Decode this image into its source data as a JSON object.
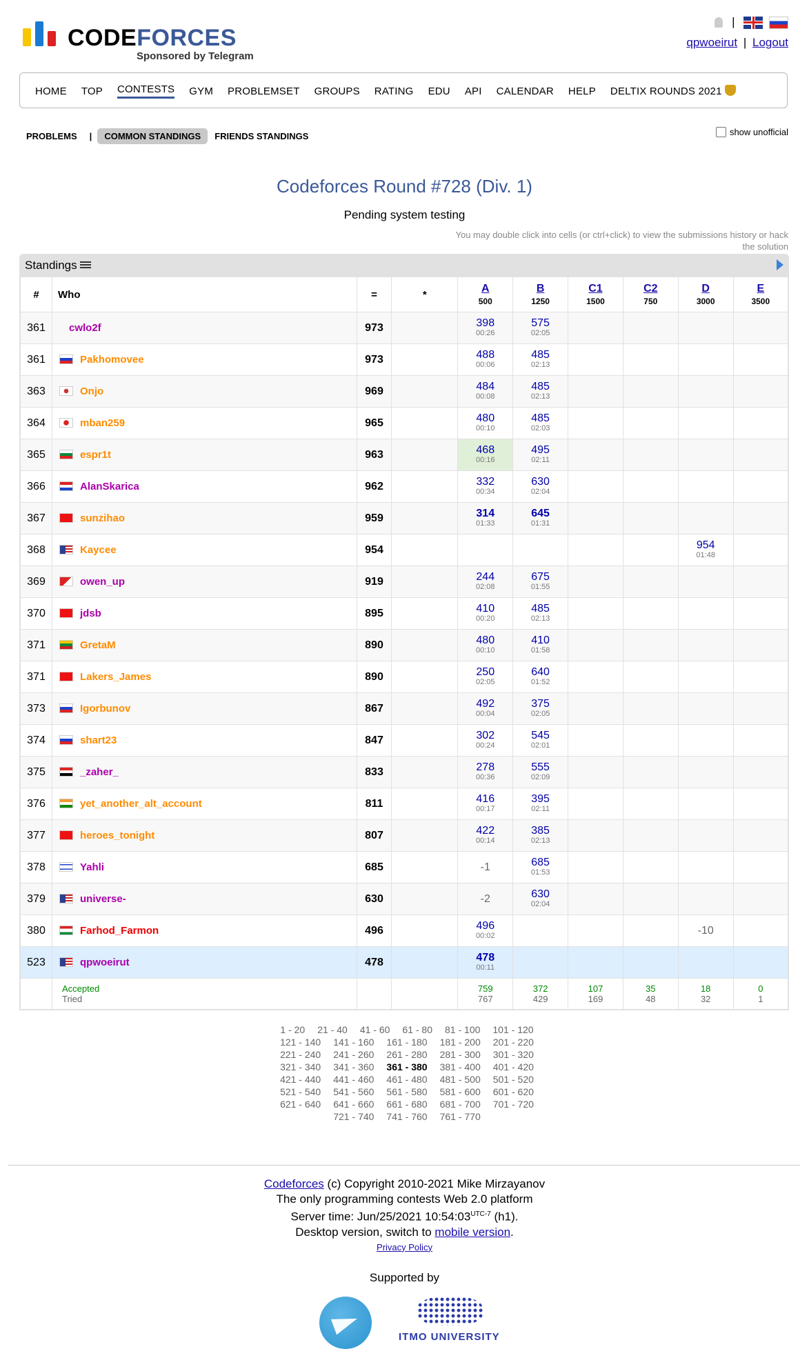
{
  "header": {
    "logo_main": "CODE",
    "logo_accent": "FORCES",
    "sponsor": "Sponsored by Telegram",
    "user": "qpwoeirut",
    "separator": "|",
    "logout": "Logout"
  },
  "menu": [
    "HOME",
    "TOP",
    "CONTESTS",
    "GYM",
    "PROBLEMSET",
    "GROUPS",
    "RATING",
    "EDU",
    "API",
    "CALENDAR",
    "HELP",
    "DELTIX ROUNDS 2021"
  ],
  "subtabs": {
    "problems": "PROBLEMS",
    "sep": "|",
    "common": "COMMON STANDINGS",
    "friends": "FRIENDS STANDINGS",
    "unofficial": "show unofficial"
  },
  "contest": {
    "title": "Codeforces Round #728 (Div. 1)",
    "status": "Pending system testing",
    "hint": "You may double click into cells (or ctrl+click) to view the submissions history or hack the solution"
  },
  "standings": {
    "label": "Standings",
    "headers": {
      "rank": "#",
      "who": "Who",
      "points": "=",
      "penalty": "*"
    },
    "problems": [
      {
        "name": "A",
        "points": "500"
      },
      {
        "name": "B",
        "points": "1250"
      },
      {
        "name": "C1",
        "points": "1500"
      },
      {
        "name": "C2",
        "points": "750"
      },
      {
        "name": "D",
        "points": "3000"
      },
      {
        "name": "E",
        "points": "3500"
      }
    ],
    "rows": [
      {
        "rank": "361",
        "user": "cwlo2f",
        "color": "#a0a",
        "flag": "",
        "points": "973",
        "cells": [
          [
            "398",
            "00:26"
          ],
          [
            "575",
            "02:05"
          ],
          null,
          null,
          null,
          null
        ]
      },
      {
        "rank": "361",
        "user": "Pakhomovee",
        "color": "#ff8c00",
        "flag": "ru",
        "points": "973",
        "cells": [
          [
            "488",
            "00:06"
          ],
          [
            "485",
            "02:13"
          ],
          null,
          null,
          null,
          null
        ]
      },
      {
        "rank": "363",
        "user": "Onjo",
        "color": "#ff8c00",
        "flag": "kr",
        "points": "969",
        "cells": [
          [
            "484",
            "00:08"
          ],
          [
            "485",
            "02:13"
          ],
          null,
          null,
          null,
          null
        ]
      },
      {
        "rank": "364",
        "user": "mban259",
        "color": "#ff8c00",
        "flag": "jp",
        "points": "965",
        "cells": [
          [
            "480",
            "00:10"
          ],
          [
            "485",
            "02:03"
          ],
          null,
          null,
          null,
          null
        ]
      },
      {
        "rank": "365",
        "user": "espr1t",
        "color": "#ff8c00",
        "flag": "bg",
        "points": "963",
        "cells": [
          [
            "468",
            "00:16"
          ],
          [
            "495",
            "02:11"
          ],
          null,
          null,
          null,
          null
        ]
      },
      {
        "rank": "366",
        "user": "AlanSkarica",
        "color": "#a0a",
        "flag": "hr",
        "points": "962",
        "cells": [
          [
            "332",
            "00:34"
          ],
          [
            "630",
            "02:04"
          ],
          null,
          null,
          null,
          null
        ]
      },
      {
        "rank": "367",
        "user": "sunzihao",
        "color": "#ff8c00",
        "flag": "cn",
        "points": "959",
        "cells": [
          [
            "314",
            "01:33"
          ],
          [
            "645",
            "01:31"
          ],
          null,
          null,
          null,
          null
        ]
      },
      {
        "rank": "368",
        "user": "Kaycee",
        "color": "#ff8c00",
        "flag": "us",
        "points": "954",
        "cells": [
          null,
          null,
          null,
          null,
          [
            "954",
            "01:48"
          ],
          null
        ]
      },
      {
        "rank": "369",
        "user": "owen_up",
        "color": "#a0a",
        "flag": "np",
        "points": "919",
        "cells": [
          [
            "244",
            "02:08"
          ],
          [
            "675",
            "01:55"
          ],
          null,
          null,
          null,
          null
        ]
      },
      {
        "rank": "370",
        "user": "jdsb",
        "color": "#a0a",
        "flag": "cn",
        "points": "895",
        "cells": [
          [
            "410",
            "00:20"
          ],
          [
            "485",
            "02:13"
          ],
          null,
          null,
          null,
          null
        ]
      },
      {
        "rank": "371",
        "user": "GretaM",
        "color": "#ff8c00",
        "flag": "lt",
        "points": "890",
        "cells": [
          [
            "480",
            "00:10"
          ],
          [
            "410",
            "01:58"
          ],
          null,
          null,
          null,
          null
        ]
      },
      {
        "rank": "371",
        "user": "Lakers_James",
        "color": "#ff8c00",
        "flag": "cn",
        "points": "890",
        "cells": [
          [
            "250",
            "02:05"
          ],
          [
            "640",
            "01:52"
          ],
          null,
          null,
          null,
          null
        ]
      },
      {
        "rank": "373",
        "user": "Igorbunov",
        "color": "#ff8c00",
        "flag": "ru",
        "points": "867",
        "cells": [
          [
            "492",
            "00:04"
          ],
          [
            "375",
            "02:05"
          ],
          null,
          null,
          null,
          null
        ]
      },
      {
        "rank": "374",
        "user": "shart23",
        "color": "#ff8c00",
        "flag": "ru",
        "points": "847",
        "cells": [
          [
            "302",
            "00:24"
          ],
          [
            "545",
            "02:01"
          ],
          null,
          null,
          null,
          null
        ]
      },
      {
        "rank": "375",
        "user": "_zaher_",
        "color": "#a0a",
        "flag": "eg",
        "points": "833",
        "cells": [
          [
            "278",
            "00:36"
          ],
          [
            "555",
            "02:09"
          ],
          null,
          null,
          null,
          null
        ]
      },
      {
        "rank": "376",
        "user": "yet_another_alt_account",
        "color": "#ff8c00",
        "flag": "in",
        "points": "811",
        "cells": [
          [
            "416",
            "00:17"
          ],
          [
            "395",
            "02:11"
          ],
          null,
          null,
          null,
          null
        ]
      },
      {
        "rank": "377",
        "user": "heroes_tonight",
        "color": "#ff8c00",
        "flag": "cn",
        "points": "807",
        "cells": [
          [
            "422",
            "00:14"
          ],
          [
            "385",
            "02:13"
          ],
          null,
          null,
          null,
          null
        ]
      },
      {
        "rank": "378",
        "user": "Yahli",
        "color": "#a0a",
        "flag": "il",
        "points": "685",
        "cells": [
          [
            "-1",
            ""
          ],
          [
            "685",
            "01:53"
          ],
          null,
          null,
          null,
          null
        ]
      },
      {
        "rank": "379",
        "user": "universe-",
        "color": "#a0a",
        "flag": "us",
        "points": "630",
        "cells": [
          [
            "-2",
            ""
          ],
          [
            "630",
            "02:04"
          ],
          null,
          null,
          null,
          null
        ]
      },
      {
        "rank": "380",
        "user": "Farhod_Farmon",
        "color": "#e00",
        "flag": "tj",
        "points": "496",
        "cells": [
          [
            "496",
            "00:02"
          ],
          null,
          null,
          null,
          [
            "-10",
            ""
          ],
          null
        ]
      },
      {
        "rank": "523",
        "user": "qpwoeirut",
        "color": "#a0a",
        "flag": "us",
        "points": "478",
        "cells": [
          [
            "478",
            "00:11"
          ],
          null,
          null,
          null,
          null,
          null
        ]
      }
    ],
    "accepted_label": "Accepted",
    "tried_label": "Tried",
    "accepted": [
      "759",
      "372",
      "107",
      "35",
      "18",
      "0"
    ],
    "tried": [
      "767",
      "429",
      "169",
      "48",
      "32",
      "1"
    ]
  },
  "pages": [
    [
      "1 - 20",
      "21 - 40",
      "41 - 60",
      "61 - 80",
      "81 - 100",
      "101 - 120"
    ],
    [
      "121 - 140",
      "141 - 160",
      "161 - 180",
      "181 - 200",
      "201 - 220"
    ],
    [
      "221 - 240",
      "241 - 260",
      "261 - 280",
      "281 - 300",
      "301 - 320"
    ],
    [
      "321 - 340",
      "341 - 360",
      "361 - 380",
      "381 - 400",
      "401 - 420"
    ],
    [
      "421 - 440",
      "441 - 460",
      "461 - 480",
      "481 - 500",
      "501 - 520"
    ],
    [
      "521 - 540",
      "541 - 560",
      "561 - 580",
      "581 - 600",
      "601 - 620"
    ],
    [
      "621 - 640",
      "641 - 660",
      "661 - 680",
      "681 - 700",
      "701 - 720"
    ],
    [
      "721 - 740",
      "741 - 760",
      "761 - 770"
    ]
  ],
  "current_page": "361 - 380",
  "footer": {
    "cf_link": "Codeforces",
    "copyright": " (c) Copyright 2010-2021 Mike Mirzayanov",
    "tagline": "The only programming contests Web 2.0 platform",
    "server_time": "Server time: Jun/25/2021 10:54:03",
    "tz": "UTC-7",
    "host": " (h1).",
    "desktop": "Desktop version, switch to ",
    "mobile": "mobile version",
    "dot": ".",
    "privacy": "Privacy Policy",
    "supported": "Supported by",
    "itmo": "ITMO UNIVERSITY"
  }
}
